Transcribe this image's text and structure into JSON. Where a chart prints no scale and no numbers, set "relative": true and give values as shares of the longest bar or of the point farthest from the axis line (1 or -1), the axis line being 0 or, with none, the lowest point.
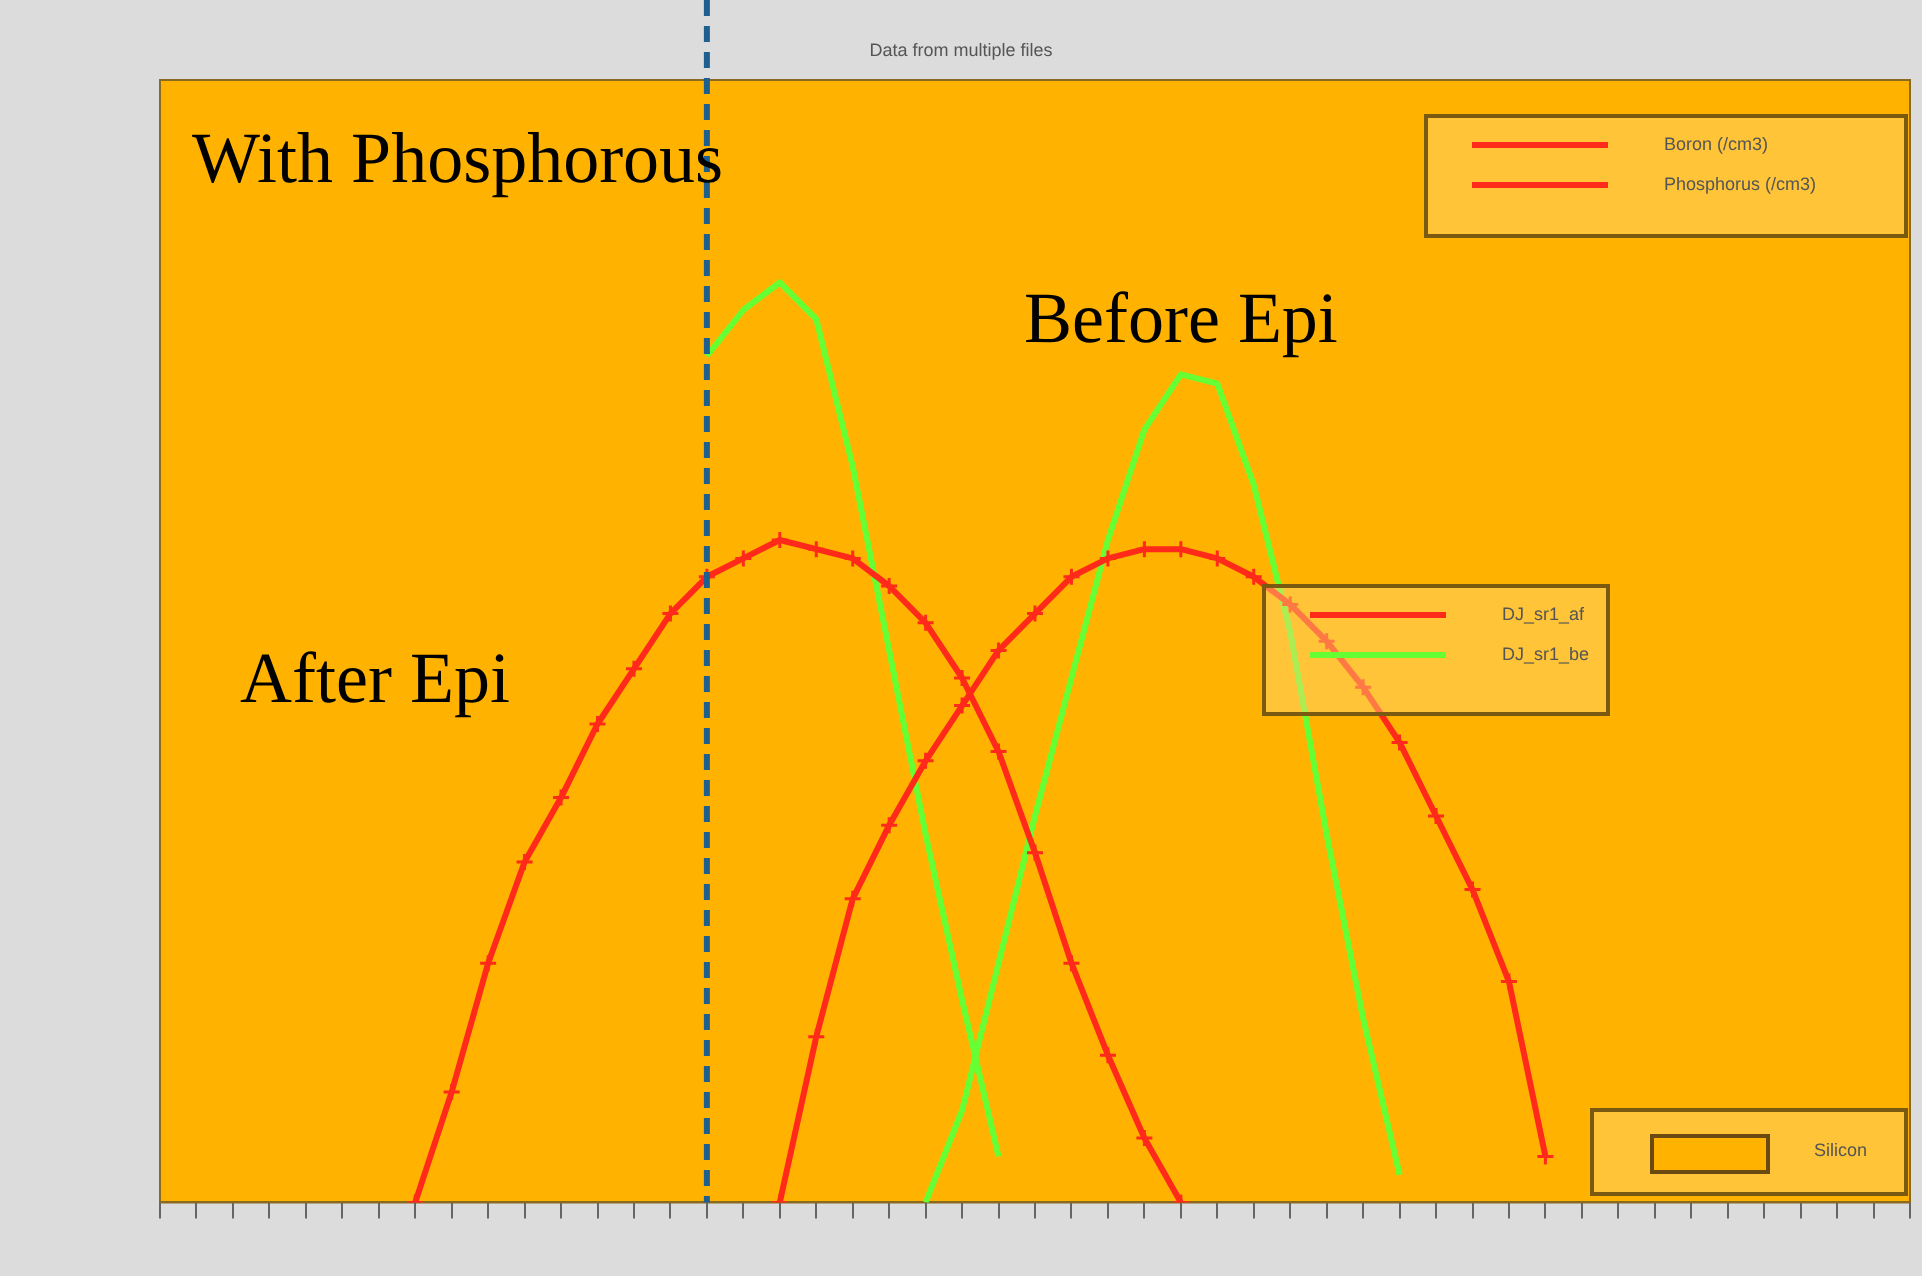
{
  "chart_data": {
    "type": "line",
    "title": "Data from multiple files",
    "relative": true,
    "legend": false,
    "grid": false,
    "line_style": "solid",
    "categories": [
      null,
      null,
      null,
      null,
      null,
      null,
      null,
      null,
      null,
      null,
      null,
      null,
      null,
      null,
      null,
      null,
      null,
      null,
      null,
      null,
      null,
      null,
      null,
      null,
      null,
      null,
      null,
      null,
      null,
      null,
      null,
      null,
      null,
      null,
      null,
      null,
      null,
      null,
      null,
      null,
      null,
      null,
      null,
      null,
      null,
      null,
      null,
      null,
      null
    ],
    "series": [
      {
        "color": "#ff2a1a",
        "marker": "cross",
        "values": [
          null,
          null,
          null,
          null,
          null,
          null,
          null,
          0,
          0.12,
          0.26,
          0.37,
          0.44,
          0.52,
          0.58,
          0.64,
          0.68,
          0.7,
          0.72,
          0.71,
          0.7,
          0.67,
          0.63,
          0.57,
          0.49,
          0.38,
          0.26,
          0.16,
          0.07,
          0,
          null,
          null,
          null,
          null,
          null,
          null,
          null,
          null,
          null,
          null,
          null,
          null,
          null,
          null,
          null,
          null,
          null,
          null,
          null,
          null
        ]
      },
      {
        "color": "#ff2a1a",
        "marker": "cross",
        "values": [
          null,
          null,
          null,
          null,
          null,
          null,
          null,
          null,
          null,
          null,
          null,
          null,
          null,
          null,
          null,
          null,
          null,
          0,
          0.18,
          0.33,
          0.41,
          0.48,
          0.54,
          0.6,
          0.64,
          0.68,
          0.7,
          0.71,
          0.71,
          0.7,
          0.68,
          0.65,
          0.61,
          0.56,
          0.5,
          0.42,
          0.34,
          0.24,
          0.05,
          null,
          null,
          null,
          null,
          null,
          null,
          null,
          null,
          null,
          null
        ]
      },
      {
        "color": "#66ff33",
        "marker": "none",
        "values": [
          null,
          null,
          null,
          null,
          null,
          null,
          null,
          null,
          null,
          null,
          null,
          null,
          null,
          null,
          null,
          0.92,
          0.97,
          1,
          0.96,
          0.8,
          0.6,
          0.4,
          0.22,
          0.05,
          null,
          null,
          null,
          null,
          null,
          null,
          null,
          null,
          null,
          null,
          null,
          null,
          null,
          null,
          null,
          null,
          null,
          null,
          null,
          null,
          null,
          null,
          null,
          null,
          null
        ]
      },
      {
        "color": "#66ff33",
        "marker": "none",
        "values": [
          null,
          null,
          null,
          null,
          null,
          null,
          null,
          null,
          null,
          null,
          null,
          null,
          null,
          null,
          null,
          null,
          null,
          null,
          null,
          null,
          null,
          0,
          0.1,
          0.26,
          0.42,
          0.57,
          0.72,
          0.84,
          0.9,
          0.89,
          0.78,
          0.62,
          0.4,
          0.2,
          0.03,
          null,
          null,
          null,
          null,
          null,
          null,
          null,
          null,
          null,
          null,
          null,
          null,
          null,
          null
        ]
      }
    ],
    "annotations": [
      "With Phosphorous",
      "Before Epi",
      "After Epi",
      "Boron (/cm3)",
      "Phosphorus (/cm3)",
      "DJ_sr1_af",
      "DJ_sr1_be",
      "Silicon"
    ]
  }
}
